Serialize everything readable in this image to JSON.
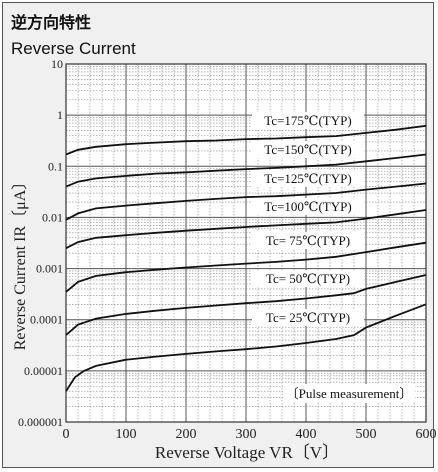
{
  "chart_data": {
    "type": "line",
    "title": "逆方向特性",
    "subtitle": "Reverse Current",
    "xlabel": "Reverse Voltage VR〔V〕",
    "ylabel": "Reverse Current IR〔μA〕",
    "xlim": [
      0,
      600
    ],
    "ylim": [
      1e-06,
      10
    ],
    "yscale": "log",
    "grid": true,
    "x_ticks": [
      "0",
      "100",
      "200",
      "300",
      "400",
      "500",
      "600"
    ],
    "y_ticks": [
      "10",
      "1",
      "0.1",
      "0.01",
      "0.001",
      "0.0001",
      "0.00001",
      "0.000001"
    ],
    "annotation": "〔Pulse measurement〕",
    "series": [
      {
        "name": "Tc=175℃(TYP)",
        "x": [
          0,
          20,
          50,
          100,
          150,
          200,
          250,
          300,
          350,
          400,
          450,
          500,
          550,
          600
        ],
        "y": [
          0.17,
          0.21,
          0.24,
          0.27,
          0.29,
          0.31,
          0.32,
          0.34,
          0.35,
          0.37,
          0.39,
          0.45,
          0.52,
          0.62
        ]
      },
      {
        "name": "Tc=150℃(TYP)",
        "x": [
          0,
          20,
          50,
          100,
          150,
          200,
          250,
          300,
          350,
          400,
          450,
          500,
          550,
          600
        ],
        "y": [
          0.04,
          0.05,
          0.058,
          0.065,
          0.072,
          0.076,
          0.082,
          0.088,
          0.093,
          0.1,
          0.108,
          0.125,
          0.145,
          0.17
        ]
      },
      {
        "name": "Tc=125℃(TYP)",
        "x": [
          0,
          20,
          50,
          100,
          150,
          200,
          250,
          300,
          350,
          400,
          450,
          500,
          550,
          600
        ],
        "y": [
          0.009,
          0.012,
          0.015,
          0.017,
          0.019,
          0.021,
          0.023,
          0.025,
          0.026,
          0.028,
          0.03,
          0.035,
          0.04,
          0.046
        ]
      },
      {
        "name": "Tc=100℃(TYP)",
        "x": [
          0,
          20,
          50,
          100,
          150,
          200,
          250,
          300,
          350,
          400,
          450,
          500,
          550,
          600
        ],
        "y": [
          0.0025,
          0.0033,
          0.004,
          0.0045,
          0.005,
          0.0055,
          0.006,
          0.0065,
          0.007,
          0.0075,
          0.008,
          0.0095,
          0.0115,
          0.014
        ]
      },
      {
        "name": "Tc= 75℃(TYP)",
        "x": [
          0,
          20,
          50,
          100,
          150,
          200,
          250,
          300,
          350,
          400,
          450,
          500,
          550,
          600
        ],
        "y": [
          0.00035,
          0.00055,
          0.00072,
          0.00085,
          0.00095,
          0.00105,
          0.00115,
          0.00125,
          0.00135,
          0.0015,
          0.0017,
          0.0021,
          0.0026,
          0.0032
        ]
      },
      {
        "name": "Tc= 50℃(TYP)",
        "x": [
          0,
          20,
          50,
          100,
          150,
          200,
          250,
          300,
          350,
          400,
          450,
          480,
          500,
          550,
          600
        ],
        "y": [
          5e-05,
          8e-05,
          0.000105,
          0.00013,
          0.00015,
          0.00017,
          0.00019,
          0.00021,
          0.00023,
          0.00026,
          0.0003,
          0.00033,
          0.0004,
          0.00055,
          0.00075
        ]
      },
      {
        "name": "Tc= 25℃(TYP)",
        "x": [
          0,
          15,
          30,
          50,
          100,
          150,
          200,
          250,
          300,
          350,
          400,
          450,
          480,
          500,
          550,
          600
        ],
        "y": [
          4e-06,
          7.5e-06,
          1e-05,
          1.25e-05,
          1.65e-05,
          1.9e-05,
          2.15e-05,
          2.4e-05,
          2.65e-05,
          3e-05,
          3.5e-05,
          4.2e-05,
          5e-05,
          7e-05,
          0.00012,
          0.0002
        ]
      }
    ]
  }
}
